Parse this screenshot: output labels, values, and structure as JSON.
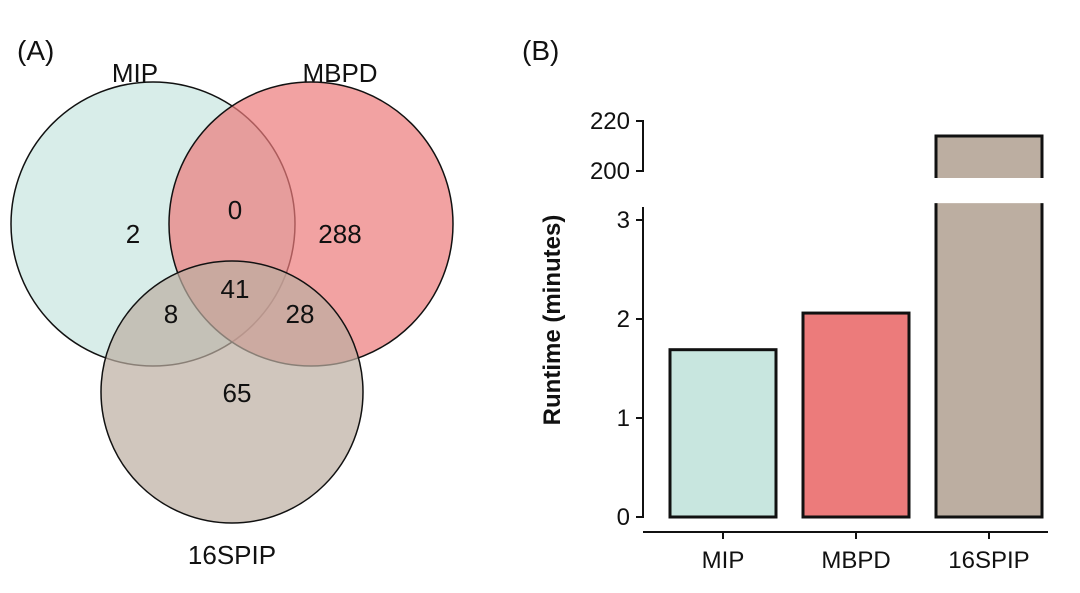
{
  "panels": {
    "a_label": "(A)",
    "b_label": "(B)"
  },
  "chart_data": [
    {
      "type": "venn",
      "sets": [
        {
          "name": "MIP",
          "color": "#c8e6df"
        },
        {
          "name": "MBPD",
          "color": "#ec7b7b"
        },
        {
          "name": "16SPIP",
          "color": "#bcaea1"
        }
      ],
      "regions": {
        "MIP_only": "2",
        "MBPD_only": "288",
        "16SPIP_only": "65",
        "MIP_MBPD": "0",
        "MIP_16SPIP": "8",
        "MBPD_16SPIP": "28",
        "all_three": "41"
      }
    },
    {
      "type": "bar",
      "categories": [
        "MIP",
        "MBPD",
        "16SPIP"
      ],
      "values": [
        1.69,
        2.06,
        214
      ],
      "colors": [
        "#c8e6df",
        "#ec7b7b",
        "#bcaea1"
      ],
      "ylabel": "Runtime (minutes)",
      "y_break": {
        "lower_range": [
          0,
          3.15
        ],
        "upper_range": [
          198,
          222
        ]
      },
      "lower_ticks": [
        "0",
        "1",
        "2",
        "3"
      ],
      "upper_ticks": [
        "200",
        "220"
      ]
    }
  ]
}
